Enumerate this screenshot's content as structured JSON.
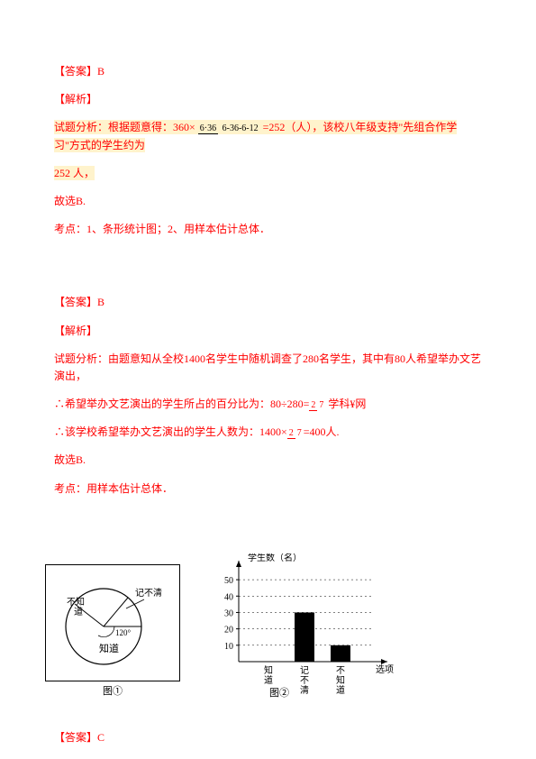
{
  "block1": {
    "answer_label": "【答案】B",
    "parse_label": "【解析】",
    "analysis_prefix": "试题分析：根据题意得：360×",
    "frac_num": "6·36",
    "frac_den": "6-36-6-12",
    "analysis_mid": "=252（人），该校八年级支持\"先组合作学习\"方式的学生约为",
    "analysis_tail": "252 人，",
    "conclusion": "故选B.",
    "topic": "考点：1、条形统计图；2、用样本估计总体．"
  },
  "block2": {
    "answer_label": "【答案】B",
    "parse_label": "【解析】",
    "line1": "试题分析：由题意知从全校1400名学生中随机调查了280名学生，其中有80人希望举办文艺演出，",
    "line2_a": "∴希望举办文艺演出的学生所占的百分比为：80÷280=",
    "line2_b": "    学科¥网",
    "frac1_num": "2",
    "frac1_den": "7",
    "line3_a": "∴该学校希望举办文艺演出的学生人数为：1400×",
    "frac2_num": "2",
    "frac2_den": "7",
    "line3_b": "=400人.",
    "conclusion": "故选B.",
    "topic": "考点：用样本估计总体．"
  },
  "pie": {
    "labels": {
      "know": "知道",
      "unclear": "记不清",
      "unknow": "不知\n道",
      "angle": "120°",
      "fig": "图①"
    },
    "colors": {
      "stroke": "#000000",
      "bg": "#ffffff"
    }
  },
  "bar": {
    "ylabel": "学生数（名）",
    "xlabel": "选项",
    "yticks": [
      "10",
      "20",
      "30",
      "40",
      "50"
    ],
    "ytick_values": [
      10,
      20,
      30,
      40,
      50
    ],
    "ymax": 55,
    "categories": [
      "知\n道",
      "记\n不\n清",
      "不\n知\n道"
    ],
    "values": [
      0,
      30,
      10
    ],
    "bar_color": "#000000",
    "axis_color": "#000000",
    "fig": "图②"
  },
  "block3": {
    "answer_label": "【答案】C"
  }
}
